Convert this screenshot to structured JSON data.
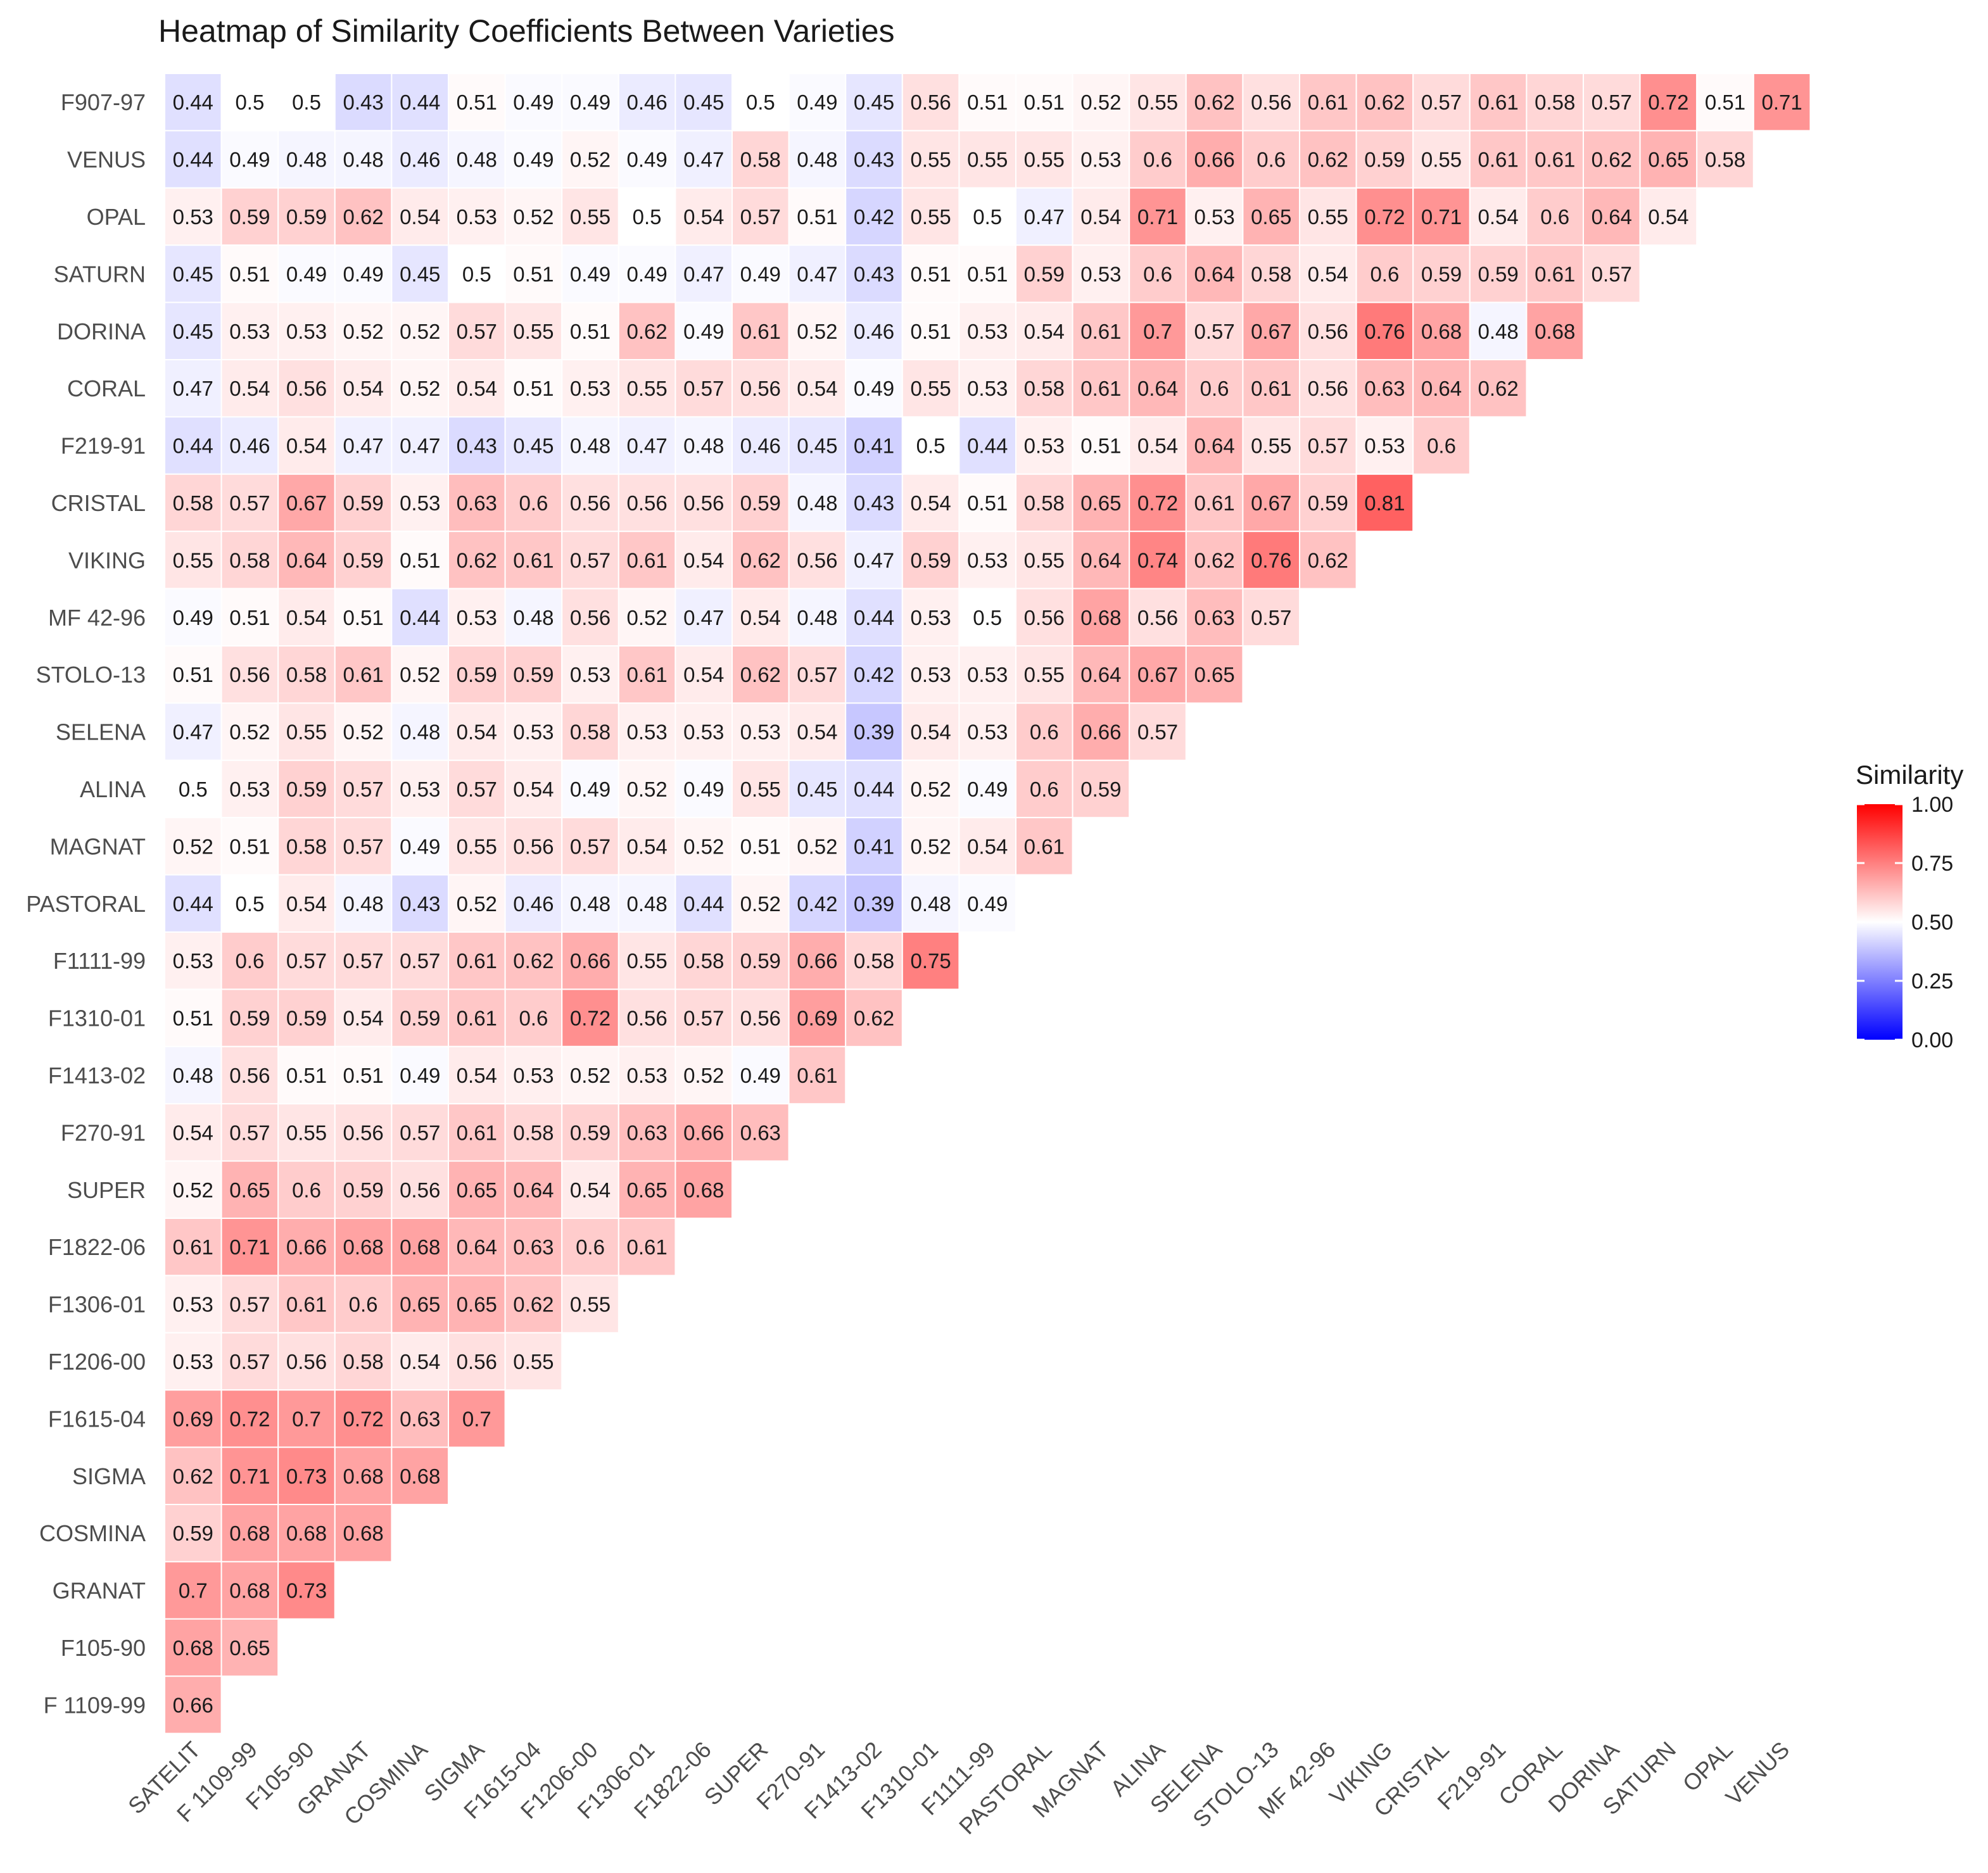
{
  "chart_data": {
    "type": "heatmap",
    "title": "Heatmap of Similarity Coefficients Between Varieties",
    "rows": [
      "F907-97",
      "VENUS",
      "OPAL",
      "SATURN",
      "DORINA",
      "CORAL",
      "F219-91",
      "CRISTAL",
      "VIKING",
      "MF 42-96",
      "STOLO-13",
      "SELENA",
      "ALINA",
      "MAGNAT",
      "PASTORAL",
      "F1111-99",
      "F1310-01",
      "F1413-02",
      "F270-91",
      "SUPER",
      "F1822-06",
      "F1306-01",
      "F1206-00",
      "F1615-04",
      "SIGMA",
      "COSMINA",
      "GRANAT",
      "F105-90",
      "F 1109-99"
    ],
    "columns": [
      "SATELIT",
      "F 1109-99",
      "F105-90",
      "GRANAT",
      "COSMINA",
      "SIGMA",
      "F1615-04",
      "F1206-00",
      "F1306-01",
      "F1822-06",
      "SUPER",
      "F270-91",
      "F1413-02",
      "F1310-01",
      "F1111-99",
      "PASTORAL",
      "MAGNAT",
      "ALINA",
      "SELENA",
      "STOLO-13",
      "MF 42-96",
      "VIKING",
      "CRISTAL",
      "F219-91",
      "CORAL",
      "DORINA",
      "SATURN",
      "OPAL",
      "VENUS"
    ],
    "values": [
      [
        "0.44",
        "0.5",
        "0.5",
        "0.43",
        "0.44",
        "0.51",
        "0.49",
        "0.49",
        "0.46",
        "0.45",
        "0.5",
        "0.49",
        "0.45",
        "0.56",
        "0.51",
        "0.51",
        "0.52",
        "0.55",
        "0.62",
        "0.56",
        "0.61",
        "0.62",
        "0.57",
        "0.61",
        "0.58",
        "0.57",
        "0.72",
        "0.51",
        "0.71"
      ],
      [
        "0.44",
        "0.49",
        "0.48",
        "0.48",
        "0.46",
        "0.48",
        "0.49",
        "0.52",
        "0.49",
        "0.47",
        "0.58",
        "0.48",
        "0.43",
        "0.55",
        "0.55",
        "0.55",
        "0.53",
        "0.6",
        "0.66",
        "0.6",
        "0.62",
        "0.59",
        "0.55",
        "0.61",
        "0.61",
        "0.62",
        "0.65",
        "0.58"
      ],
      [
        "0.53",
        "0.59",
        "0.59",
        "0.62",
        "0.54",
        "0.53",
        "0.52",
        "0.55",
        "0.5",
        "0.54",
        "0.57",
        "0.51",
        "0.42",
        "0.55",
        "0.5",
        "0.47",
        "0.54",
        "0.71",
        "0.53",
        "0.65",
        "0.55",
        "0.72",
        "0.71",
        "0.54",
        "0.6",
        "0.64",
        "0.54"
      ],
      [
        "0.45",
        "0.51",
        "0.49",
        "0.49",
        "0.45",
        "0.5",
        "0.51",
        "0.49",
        "0.49",
        "0.47",
        "0.49",
        "0.47",
        "0.43",
        "0.51",
        "0.51",
        "0.59",
        "0.53",
        "0.6",
        "0.64",
        "0.58",
        "0.54",
        "0.6",
        "0.59",
        "0.59",
        "0.61",
        "0.57"
      ],
      [
        "0.45",
        "0.53",
        "0.53",
        "0.52",
        "0.52",
        "0.57",
        "0.55",
        "0.51",
        "0.62",
        "0.49",
        "0.61",
        "0.52",
        "0.46",
        "0.51",
        "0.53",
        "0.54",
        "0.61",
        "0.7",
        "0.57",
        "0.67",
        "0.56",
        "0.76",
        "0.68",
        "0.48",
        "0.68"
      ],
      [
        "0.47",
        "0.54",
        "0.56",
        "0.54",
        "0.52",
        "0.54",
        "0.51",
        "0.53",
        "0.55",
        "0.57",
        "0.56",
        "0.54",
        "0.49",
        "0.55",
        "0.53",
        "0.58",
        "0.61",
        "0.64",
        "0.6",
        "0.61",
        "0.56",
        "0.63",
        "0.64",
        "0.62"
      ],
      [
        "0.44",
        "0.46",
        "0.54",
        "0.47",
        "0.47",
        "0.43",
        "0.45",
        "0.48",
        "0.47",
        "0.48",
        "0.46",
        "0.45",
        "0.41",
        "0.5",
        "0.44",
        "0.53",
        "0.51",
        "0.54",
        "0.64",
        "0.55",
        "0.57",
        "0.53",
        "0.6"
      ],
      [
        "0.58",
        "0.57",
        "0.67",
        "0.59",
        "0.53",
        "0.63",
        "0.6",
        "0.56",
        "0.56",
        "0.56",
        "0.59",
        "0.48",
        "0.43",
        "0.54",
        "0.51",
        "0.58",
        "0.65",
        "0.72",
        "0.61",
        "0.67",
        "0.59",
        "0.81"
      ],
      [
        "0.55",
        "0.58",
        "0.64",
        "0.59",
        "0.51",
        "0.62",
        "0.61",
        "0.57",
        "0.61",
        "0.54",
        "0.62",
        "0.56",
        "0.47",
        "0.59",
        "0.53",
        "0.55",
        "0.64",
        "0.74",
        "0.62",
        "0.76",
        "0.62"
      ],
      [
        "0.49",
        "0.51",
        "0.54",
        "0.51",
        "0.44",
        "0.53",
        "0.48",
        "0.56",
        "0.52",
        "0.47",
        "0.54",
        "0.48",
        "0.44",
        "0.53",
        "0.5",
        "0.56",
        "0.68",
        "0.56",
        "0.63",
        "0.57"
      ],
      [
        "0.51",
        "0.56",
        "0.58",
        "0.61",
        "0.52",
        "0.59",
        "0.59",
        "0.53",
        "0.61",
        "0.54",
        "0.62",
        "0.57",
        "0.42",
        "0.53",
        "0.53",
        "0.55",
        "0.64",
        "0.67",
        "0.65"
      ],
      [
        "0.47",
        "0.52",
        "0.55",
        "0.52",
        "0.48",
        "0.54",
        "0.53",
        "0.58",
        "0.53",
        "0.53",
        "0.53",
        "0.54",
        "0.39",
        "0.54",
        "0.53",
        "0.6",
        "0.66",
        "0.57"
      ],
      [
        "0.5",
        "0.53",
        "0.59",
        "0.57",
        "0.53",
        "0.57",
        "0.54",
        "0.49",
        "0.52",
        "0.49",
        "0.55",
        "0.45",
        "0.44",
        "0.52",
        "0.49",
        "0.6",
        "0.59"
      ],
      [
        "0.52",
        "0.51",
        "0.58",
        "0.57",
        "0.49",
        "0.55",
        "0.56",
        "0.57",
        "0.54",
        "0.52",
        "0.51",
        "0.52",
        "0.41",
        "0.52",
        "0.54",
        "0.61"
      ],
      [
        "0.44",
        "0.5",
        "0.54",
        "0.48",
        "0.43",
        "0.52",
        "0.46",
        "0.48",
        "0.48",
        "0.44",
        "0.52",
        "0.42",
        "0.39",
        "0.48",
        "0.49"
      ],
      [
        "0.53",
        "0.6",
        "0.57",
        "0.57",
        "0.57",
        "0.61",
        "0.62",
        "0.66",
        "0.55",
        "0.58",
        "0.59",
        "0.66",
        "0.58",
        "0.75"
      ],
      [
        "0.51",
        "0.59",
        "0.59",
        "0.54",
        "0.59",
        "0.61",
        "0.6",
        "0.72",
        "0.56",
        "0.57",
        "0.56",
        "0.69",
        "0.62"
      ],
      [
        "0.48",
        "0.56",
        "0.51",
        "0.51",
        "0.49",
        "0.54",
        "0.53",
        "0.52",
        "0.53",
        "0.52",
        "0.49",
        "0.61"
      ],
      [
        "0.54",
        "0.57",
        "0.55",
        "0.56",
        "0.57",
        "0.61",
        "0.58",
        "0.59",
        "0.63",
        "0.66",
        "0.63"
      ],
      [
        "0.52",
        "0.65",
        "0.6",
        "0.59",
        "0.56",
        "0.65",
        "0.64",
        "0.54",
        "0.65",
        "0.68"
      ],
      [
        "0.61",
        "0.71",
        "0.66",
        "0.68",
        "0.68",
        "0.64",
        "0.63",
        "0.6",
        "0.61"
      ],
      [
        "0.53",
        "0.57",
        "0.61",
        "0.6",
        "0.65",
        "0.65",
        "0.62",
        "0.55"
      ],
      [
        "0.53",
        "0.57",
        "0.56",
        "0.58",
        "0.54",
        "0.56",
        "0.55"
      ],
      [
        "0.69",
        "0.72",
        "0.7",
        "0.72",
        "0.63",
        "0.7"
      ],
      [
        "0.62",
        "0.71",
        "0.73",
        "0.68",
        "0.68"
      ],
      [
        "0.59",
        "0.68",
        "0.68",
        "0.68"
      ],
      [
        "0.7",
        "0.68",
        "0.73"
      ],
      [
        "0.68",
        "0.65"
      ],
      [
        "0.66"
      ]
    ],
    "legend": {
      "title": "Similarity",
      "ticks": [
        "1.00",
        "0.75",
        "0.50",
        "0.25",
        "0.00"
      ],
      "range": [
        0,
        1
      ],
      "midpoint": 0.5,
      "low_color": "#0000ff",
      "mid_color": "#ffffff",
      "high_color": "#ff0000",
      "placement": "right"
    }
  }
}
